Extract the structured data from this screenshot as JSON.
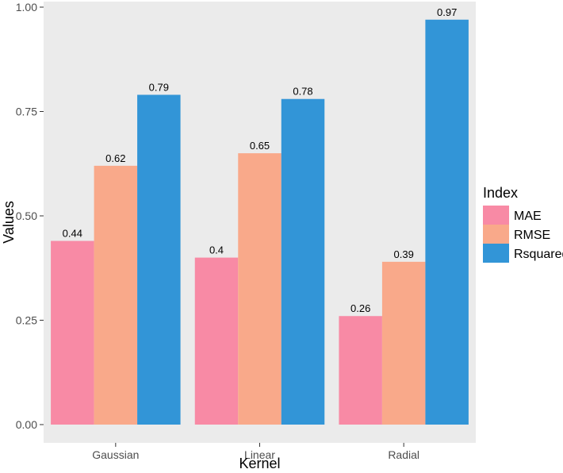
{
  "chart_data": {
    "type": "bar",
    "xlabel": "Kernel",
    "ylabel": "Values",
    "categories": [
      "Gaussian",
      "Linear",
      "Radial"
    ],
    "series": [
      {
        "name": "MAE",
        "values": [
          0.44,
          0.4,
          0.26
        ],
        "value_labels": [
          "0.44",
          "0.4",
          "0.26"
        ],
        "color": "#F88AA5"
      },
      {
        "name": "RMSE",
        "values": [
          0.62,
          0.65,
          0.39
        ],
        "value_labels": [
          "0.62",
          "0.65",
          "0.39"
        ],
        "color": "#F9A98A"
      },
      {
        "name": "Rsquared",
        "values": [
          0.79,
          0.78,
          0.97
        ],
        "value_labels": [
          "0.79",
          "0.78",
          "0.97"
        ],
        "color": "#3295D7"
      }
    ],
    "ylim": [
      0,
      1
    ],
    "yticks": [
      0,
      0.25,
      0.5,
      0.75,
      1
    ],
    "ytick_labels": [
      "0.00",
      "0.25",
      "0.50",
      "0.75",
      "1.00"
    ],
    "legend": {
      "title": "Index",
      "position": "right"
    },
    "panel_background": "#EBEBEB",
    "grid": false
  }
}
